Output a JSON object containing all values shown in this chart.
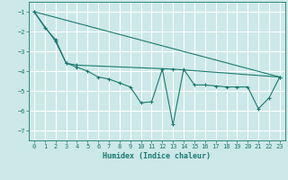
{
  "xlabel": "Humidex (Indice chaleur)",
  "background_color": "#cce8e8",
  "grid_color": "#ffffff",
  "line_color": "#1a7a6e",
  "xlim": [
    -0.5,
    23.5
  ],
  "ylim": [
    -7.5,
    -0.5
  ],
  "yticks": [
    -7,
    -6,
    -5,
    -4,
    -3,
    -2,
    -1
  ],
  "xticks": [
    0,
    1,
    2,
    3,
    4,
    5,
    6,
    7,
    8,
    9,
    10,
    11,
    12,
    13,
    14,
    15,
    16,
    17,
    18,
    19,
    20,
    21,
    22,
    23
  ],
  "series1_x": [
    0,
    1,
    2,
    3,
    4,
    5,
    6,
    7,
    8,
    9,
    10,
    11,
    12,
    13,
    14,
    15,
    16,
    17,
    18,
    19,
    20,
    21,
    22,
    23
  ],
  "series1_y": [
    -1.0,
    -1.8,
    -2.4,
    -3.6,
    -3.8,
    -4.0,
    -4.3,
    -4.4,
    -4.6,
    -4.8,
    -5.6,
    -5.55,
    -3.9,
    -6.7,
    -3.9,
    -4.7,
    -4.7,
    -4.75,
    -4.8,
    -4.8,
    -4.8,
    -5.9,
    -5.35,
    -4.3
  ],
  "series2_x": [
    0,
    2,
    3,
    4,
    13,
    23
  ],
  "series2_y": [
    -1.0,
    -2.5,
    -3.6,
    -3.7,
    -3.9,
    -4.3
  ],
  "series3_x": [
    0,
    23
  ],
  "series3_y": [
    -1.0,
    -4.3
  ]
}
